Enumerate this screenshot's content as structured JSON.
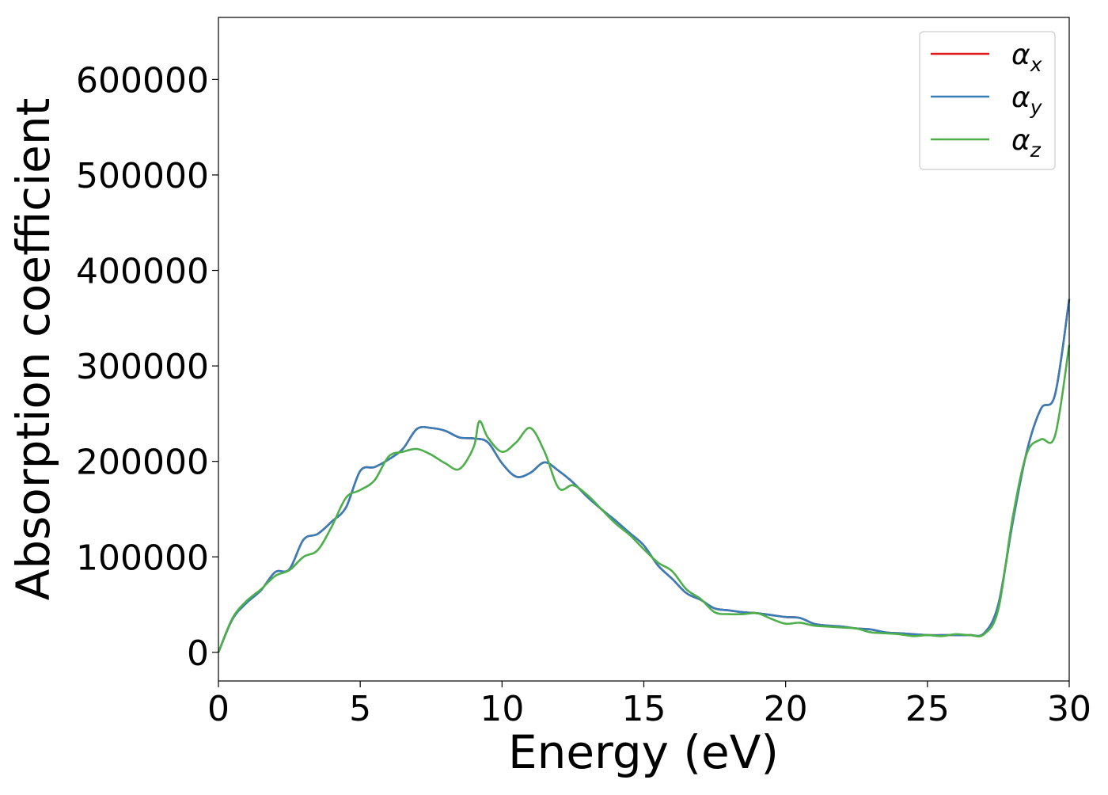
{
  "chart_data": {
    "type": "line",
    "title": "",
    "xlabel": "Energy (eV)",
    "ylabel": "Absorption coefficient",
    "xlim": [
      0,
      30
    ],
    "ylim": [
      -30000,
      665000
    ],
    "xticks": [
      0,
      5,
      10,
      15,
      20,
      25,
      30
    ],
    "yticks": [
      0,
      100000,
      200000,
      300000,
      400000,
      500000,
      600000
    ],
    "xtick_labels": [
      "0",
      "5",
      "10",
      "15",
      "20",
      "25",
      "30"
    ],
    "ytick_labels": [
      "0",
      "100000",
      "200000",
      "300000",
      "400000",
      "500000",
      "600000"
    ],
    "grid": false,
    "legend": {
      "position": "top-right",
      "entries": [
        {
          "base": "α",
          "sub": "x"
        },
        {
          "base": "α",
          "sub": "y"
        },
        {
          "base": "α",
          "sub": "z"
        }
      ]
    },
    "series": [
      {
        "name": "αx",
        "color": "#e41a1c",
        "points": [
          [
            0,
            0
          ],
          [
            0.5,
            35000
          ],
          [
            1,
            52000
          ],
          [
            1.5,
            65000
          ],
          [
            2,
            84000
          ],
          [
            2.5,
            87000
          ],
          [
            3,
            118000
          ],
          [
            3.5,
            124000
          ],
          [
            4,
            137000
          ],
          [
            4.5,
            152000
          ],
          [
            5,
            190000
          ],
          [
            5.5,
            194000
          ],
          [
            6,
            202000
          ],
          [
            6.5,
            213000
          ],
          [
            7,
            234000
          ],
          [
            7.5,
            235000
          ],
          [
            8,
            232000
          ],
          [
            8.5,
            225000
          ],
          [
            9,
            224000
          ],
          [
            9.5,
            220000
          ],
          [
            10,
            198000
          ],
          [
            10.5,
            184000
          ],
          [
            11,
            188000
          ],
          [
            11.5,
            199000
          ],
          [
            12,
            190000
          ],
          [
            12.5,
            178000
          ],
          [
            13,
            163000
          ],
          [
            13.5,
            150000
          ],
          [
            14,
            138000
          ],
          [
            14.5,
            125000
          ],
          [
            15,
            112000
          ],
          [
            15.5,
            91000
          ],
          [
            16,
            77000
          ],
          [
            16.5,
            62000
          ],
          [
            17,
            55000
          ],
          [
            17.5,
            46000
          ],
          [
            18,
            44000
          ],
          [
            18.5,
            42000
          ],
          [
            19,
            41000
          ],
          [
            19.5,
            39000
          ],
          [
            20,
            37000
          ],
          [
            20.5,
            36000
          ],
          [
            21,
            30000
          ],
          [
            21.5,
            28000
          ],
          [
            22,
            27000
          ],
          [
            22.5,
            25000
          ],
          [
            23,
            24000
          ],
          [
            23.5,
            21000
          ],
          [
            24,
            20000
          ],
          [
            24.5,
            19000
          ],
          [
            25,
            18000
          ],
          [
            25.5,
            18000
          ],
          [
            26,
            18000
          ],
          [
            26.5,
            18000
          ],
          [
            27,
            20000
          ],
          [
            27.5,
            50000
          ],
          [
            28,
            135000
          ],
          [
            28.5,
            210000
          ],
          [
            29,
            255000
          ],
          [
            29.5,
            270000
          ],
          [
            30,
            370000
          ]
        ]
      },
      {
        "name": "αy",
        "color": "#377eb8",
        "points": [
          [
            0,
            0
          ],
          [
            0.5,
            35000
          ],
          [
            1,
            52000
          ],
          [
            1.5,
            65000
          ],
          [
            2,
            84000
          ],
          [
            2.5,
            87000
          ],
          [
            3,
            118000
          ],
          [
            3.5,
            124000
          ],
          [
            4,
            137000
          ],
          [
            4.5,
            152000
          ],
          [
            5,
            190000
          ],
          [
            5.5,
            194000
          ],
          [
            6,
            202000
          ],
          [
            6.5,
            213000
          ],
          [
            7,
            234000
          ],
          [
            7.5,
            235000
          ],
          [
            8,
            232000
          ],
          [
            8.5,
            225000
          ],
          [
            9,
            224000
          ],
          [
            9.5,
            220000
          ],
          [
            10,
            198000
          ],
          [
            10.5,
            184000
          ],
          [
            11,
            188000
          ],
          [
            11.5,
            199000
          ],
          [
            12,
            190000
          ],
          [
            12.5,
            178000
          ],
          [
            13,
            163000
          ],
          [
            13.5,
            150000
          ],
          [
            14,
            138000
          ],
          [
            14.5,
            125000
          ],
          [
            15,
            112000
          ],
          [
            15.5,
            91000
          ],
          [
            16,
            77000
          ],
          [
            16.5,
            62000
          ],
          [
            17,
            55000
          ],
          [
            17.5,
            46000
          ],
          [
            18,
            44000
          ],
          [
            18.5,
            42000
          ],
          [
            19,
            41000
          ],
          [
            19.5,
            39000
          ],
          [
            20,
            37000
          ],
          [
            20.5,
            36000
          ],
          [
            21,
            30000
          ],
          [
            21.5,
            28000
          ],
          [
            22,
            27000
          ],
          [
            22.5,
            25000
          ],
          [
            23,
            24000
          ],
          [
            23.5,
            21000
          ],
          [
            24,
            20000
          ],
          [
            24.5,
            19000
          ],
          [
            25,
            18000
          ],
          [
            25.5,
            18000
          ],
          [
            26,
            18000
          ],
          [
            26.5,
            18000
          ],
          [
            27,
            20000
          ],
          [
            27.5,
            50000
          ],
          [
            28,
            135000
          ],
          [
            28.5,
            210000
          ],
          [
            29,
            255000
          ],
          [
            29.5,
            270000
          ],
          [
            30,
            370000
          ]
        ]
      },
      {
        "name": "αz",
        "color": "#4daf4a",
        "points": [
          [
            0,
            0
          ],
          [
            0.5,
            36000
          ],
          [
            1,
            54000
          ],
          [
            1.5,
            66000
          ],
          [
            2,
            80000
          ],
          [
            2.5,
            86000
          ],
          [
            3,
            100000
          ],
          [
            3.5,
            107000
          ],
          [
            4,
            132000
          ],
          [
            4.5,
            162000
          ],
          [
            5,
            170000
          ],
          [
            5.5,
            180000
          ],
          [
            6,
            205000
          ],
          [
            6.5,
            210000
          ],
          [
            7,
            213000
          ],
          [
            7.5,
            207000
          ],
          [
            8,
            198000
          ],
          [
            8.5,
            192000
          ],
          [
            9,
            215000
          ],
          [
            9.2,
            242000
          ],
          [
            9.5,
            225000
          ],
          [
            10,
            210000
          ],
          [
            10.5,
            220000
          ],
          [
            11,
            235000
          ],
          [
            11.5,
            210000
          ],
          [
            12,
            172000
          ],
          [
            12.5,
            175000
          ],
          [
            13,
            165000
          ],
          [
            13.5,
            150000
          ],
          [
            14,
            135000
          ],
          [
            14.5,
            123000
          ],
          [
            15,
            108000
          ],
          [
            15.5,
            94000
          ],
          [
            16,
            85000
          ],
          [
            16.5,
            66000
          ],
          [
            17,
            56000
          ],
          [
            17.5,
            42000
          ],
          [
            18,
            40000
          ],
          [
            18.5,
            40000
          ],
          [
            19,
            41000
          ],
          [
            19.5,
            35000
          ],
          [
            20,
            30000
          ],
          [
            20.5,
            31000
          ],
          [
            21,
            28000
          ],
          [
            21.5,
            27000
          ],
          [
            22,
            26000
          ],
          [
            22.5,
            25000
          ],
          [
            23,
            21000
          ],
          [
            23.5,
            20000
          ],
          [
            24,
            19000
          ],
          [
            24.5,
            17000
          ],
          [
            25,
            18000
          ],
          [
            25.5,
            17000
          ],
          [
            26,
            19000
          ],
          [
            26.5,
            18000
          ],
          [
            27,
            19000
          ],
          [
            27.5,
            45000
          ],
          [
            28,
            140000
          ],
          [
            28.5,
            208000
          ],
          [
            29,
            223000
          ],
          [
            29.5,
            227000
          ],
          [
            30,
            322000
          ]
        ]
      }
    ]
  }
}
